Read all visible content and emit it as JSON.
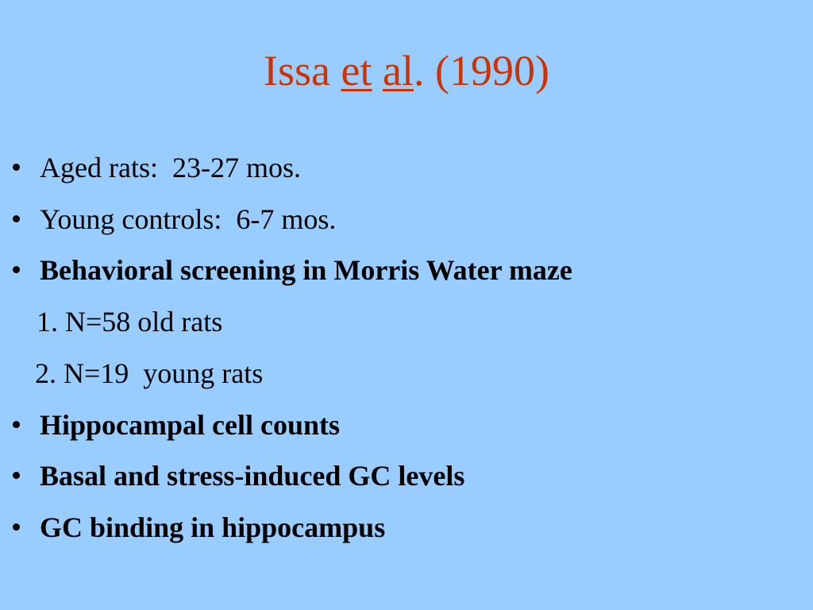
{
  "header": {
    "title_parts": [
      {
        "text": "Issa ",
        "underline": false
      },
      {
        "text": "et",
        "underline": true
      },
      {
        "text": " ",
        "underline": false
      },
      {
        "text": "al",
        "underline": true
      },
      {
        "text": ". (1990)",
        "underline": false
      }
    ]
  },
  "items": [
    {
      "text": "Aged rats:  23-27 mos.",
      "bold": false,
      "kind": "bullet"
    },
    {
      "text": "Young controls:  6-7 mos.",
      "bold": false,
      "kind": "bullet"
    },
    {
      "text": "Behavioral screening in Morris Water maze",
      "bold": true,
      "kind": "bullet"
    },
    {
      "text": "1. N=58 old rats",
      "bold": false,
      "kind": "sub"
    },
    {
      "text": "2. N=19  young rats",
      "bold": false,
      "kind": "sub"
    },
    {
      "text": "Hippocampal cell counts",
      "bold": true,
      "kind": "bullet"
    },
    {
      "text": "Basal and stress-induced GC levels",
      "bold": true,
      "kind": "bullet"
    },
    {
      "text": "GC binding in hippocampus",
      "bold": true,
      "kind": "bullet"
    }
  ]
}
